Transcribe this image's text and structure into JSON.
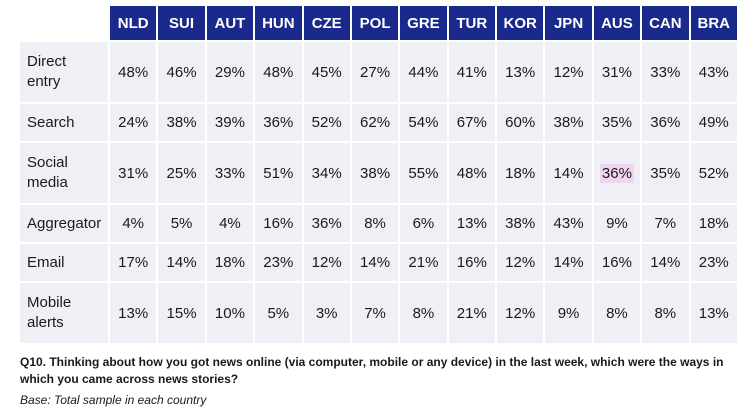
{
  "chart_data": {
    "type": "table",
    "columns": [
      "NLD",
      "SUI",
      "AUT",
      "HUN",
      "CZE",
      "POL",
      "GRE",
      "TUR",
      "KOR",
      "JPN",
      "AUS",
      "CAN",
      "BRA"
    ],
    "rows": [
      {
        "label": "Direct entry",
        "values": [
          "48%",
          "46%",
          "29%",
          "48%",
          "45%",
          "27%",
          "44%",
          "41%",
          "13%",
          "12%",
          "31%",
          "33%",
          "43%"
        ]
      },
      {
        "label": "Search",
        "values": [
          "24%",
          "38%",
          "39%",
          "36%",
          "52%",
          "62%",
          "54%",
          "67%",
          "60%",
          "38%",
          "35%",
          "36%",
          "49%"
        ]
      },
      {
        "label": "Social media",
        "values": [
          "31%",
          "25%",
          "33%",
          "51%",
          "34%",
          "38%",
          "55%",
          "48%",
          "18%",
          "14%",
          "36%",
          "35%",
          "52%"
        ]
      },
      {
        "label": "Aggregator",
        "values": [
          "4%",
          "5%",
          "4%",
          "16%",
          "36%",
          "8%",
          "6%",
          "13%",
          "38%",
          "43%",
          "9%",
          "7%",
          "18%"
        ]
      },
      {
        "label": "Email",
        "values": [
          "17%",
          "14%",
          "18%",
          "23%",
          "12%",
          "14%",
          "21%",
          "16%",
          "12%",
          "14%",
          "16%",
          "14%",
          "23%"
        ]
      },
      {
        "label": "Mobile alerts",
        "values": [
          "13%",
          "15%",
          "10%",
          "5%",
          "3%",
          "7%",
          "8%",
          "21%",
          "12%",
          "9%",
          "8%",
          "8%",
          "13%"
        ]
      }
    ],
    "highlight": {
      "row": 2,
      "col": 10,
      "color": "#f1d4f0"
    },
    "header_color": "#1a2a8c",
    "cell_color": "#eef0f5"
  },
  "caption": {
    "question": "Q10. Thinking about how you got news online (via computer, mobile or any device) in the last week, which were the ways in which you came across news stories?",
    "base": "Base: Total sample in each country"
  }
}
